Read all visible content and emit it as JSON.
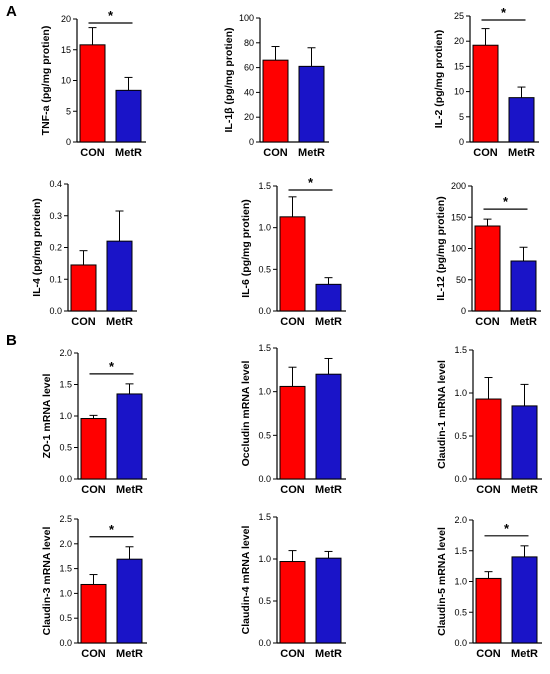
{
  "panel_labels": [
    "A",
    "B"
  ],
  "colors": {
    "CON": "#ff0000",
    "MetR": "#1a14c8",
    "axis": "#000000"
  },
  "chart_data": [
    {
      "type": "bar",
      "panel": "A",
      "ylabel": "TNF-a (pg/mg protien)",
      "categories": [
        "CON",
        "MetR"
      ],
      "values": [
        15.8,
        8.4
      ],
      "errors": [
        2.8,
        2.1
      ],
      "ylim": [
        0,
        20
      ],
      "yticks": [
        0,
        5,
        10,
        15,
        20
      ],
      "significant": true,
      "significance": "*"
    },
    {
      "type": "bar",
      "ylabel": "IL-1β (pg/mg protien)",
      "categories": [
        "CON",
        "MetR"
      ],
      "values": [
        66,
        61
      ],
      "errors": [
        11,
        15
      ],
      "ylim": [
        0,
        100
      ],
      "yticks": [
        0,
        20,
        40,
        60,
        80,
        100
      ],
      "significant": false,
      "significance": ""
    },
    {
      "type": "bar",
      "ylabel": "IL-2 (pg/mg protien)",
      "categories": [
        "CON",
        "MetR"
      ],
      "values": [
        19.2,
        8.8
      ],
      "errors": [
        3.3,
        2.1
      ],
      "ylim": [
        0,
        25
      ],
      "yticks": [
        0,
        5,
        10,
        15,
        20,
        25
      ],
      "significant": true,
      "significance": "*"
    },
    {
      "type": "bar",
      "ylabel": "IL-4 (pg/mg protien)",
      "categories": [
        "CON",
        "MetR"
      ],
      "values": [
        0.145,
        0.22
      ],
      "errors": [
        0.045,
        0.095
      ],
      "ylim": [
        0,
        0.4
      ],
      "yticks": [
        0.0,
        0.1,
        0.2,
        0.3,
        0.4
      ],
      "significant": false,
      "significance": ""
    },
    {
      "type": "bar",
      "ylabel": "IL-6 (pg/mg protien)",
      "categories": [
        "CON",
        "MetR"
      ],
      "values": [
        1.13,
        0.32
      ],
      "errors": [
        0.24,
        0.08
      ],
      "ylim": [
        0,
        1.5
      ],
      "yticks": [
        0.0,
        0.5,
        1.0,
        1.5
      ],
      "significant": true,
      "significance": "*"
    },
    {
      "type": "bar",
      "ylabel": "IL-12 (pg/mg protien)",
      "categories": [
        "CON",
        "MetR"
      ],
      "values": [
        136,
        80
      ],
      "errors": [
        11,
        22
      ],
      "ylim": [
        0,
        200
      ],
      "yticks": [
        0,
        50,
        100,
        150,
        200
      ],
      "significant": true,
      "significance": "*"
    },
    {
      "type": "bar",
      "panel": "B",
      "ylabel": "ZO-1 mRNA level",
      "categories": [
        "CON",
        "MetR"
      ],
      "values": [
        0.96,
        1.35
      ],
      "errors": [
        0.05,
        0.16
      ],
      "ylim": [
        0,
        2.0
      ],
      "yticks": [
        0.0,
        0.5,
        1.0,
        1.5,
        2.0
      ],
      "significant": true,
      "significance": "*"
    },
    {
      "type": "bar",
      "ylabel": "Occludin mRNA level",
      "categories": [
        "CON",
        "MetR"
      ],
      "values": [
        1.06,
        1.2
      ],
      "errors": [
        0.22,
        0.18
      ],
      "ylim": [
        0,
        1.5
      ],
      "yticks": [
        0.0,
        0.5,
        1.0,
        1.5
      ],
      "significant": false,
      "significance": ""
    },
    {
      "type": "bar",
      "ylabel": "Claudin-1 mRNA level",
      "categories": [
        "CON",
        "MetR"
      ],
      "values": [
        0.93,
        0.85
      ],
      "errors": [
        0.25,
        0.25
      ],
      "ylim": [
        0,
        1.5
      ],
      "yticks": [
        0.0,
        0.5,
        1.0,
        1.5
      ],
      "significant": false,
      "significance": ""
    },
    {
      "type": "bar",
      "ylabel": "Claudin-3 mRNA level",
      "categories": [
        "CON",
        "MetR"
      ],
      "values": [
        1.18,
        1.69
      ],
      "errors": [
        0.2,
        0.25
      ],
      "ylim": [
        0,
        2.5
      ],
      "yticks": [
        0.0,
        0.5,
        1.0,
        1.5,
        2.0,
        2.5
      ],
      "significant": true,
      "significance": "*"
    },
    {
      "type": "bar",
      "ylabel": "Claudin-4 mRNA level",
      "categories": [
        "CON",
        "MetR"
      ],
      "values": [
        0.97,
        1.01
      ],
      "errors": [
        0.13,
        0.08
      ],
      "ylim": [
        0,
        1.5
      ],
      "yticks": [
        0.0,
        0.5,
        1.0,
        1.5
      ],
      "significant": false,
      "significance": ""
    },
    {
      "type": "bar",
      "ylabel": "Claudin-5 mRNA level",
      "categories": [
        "CON",
        "MetR"
      ],
      "values": [
        1.05,
        1.4
      ],
      "errors": [
        0.11,
        0.18
      ],
      "ylim": [
        0,
        2.0
      ],
      "yticks": [
        0.0,
        0.5,
        1.0,
        1.5,
        2.0
      ],
      "significant": true,
      "significance": "*"
    }
  ]
}
